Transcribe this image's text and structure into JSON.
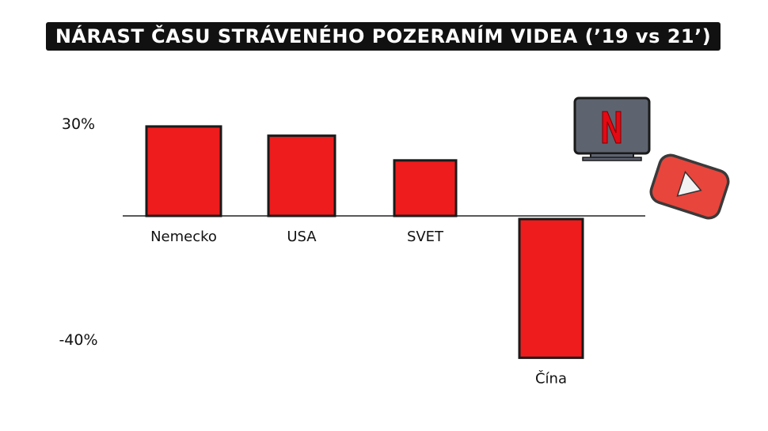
{
  "title": "NÁRAST ČASU STRÁVENÉHO POZERANÍM VIDEA (’19 vs 21’)",
  "colors": {
    "bar": "#ee1c1c",
    "bar_edge": "#1a1a1a",
    "title_bg": "#111111"
  },
  "icons": [
    "netflix-tv-icon",
    "youtube-play-icon"
  ],
  "chart_data": {
    "type": "bar",
    "title": "NÁRAST ČASU STRÁVENÉHO POZERANÍM VIDEA (’19 vs 21’)",
    "categories": [
      "Nemecko",
      "USA",
      "SVET",
      "Čína"
    ],
    "values": [
      29,
      26,
      18,
      -46
    ],
    "yticks": [
      {
        "value": 30,
        "label": "30%"
      },
      {
        "value": -40,
        "label": "-40%"
      }
    ],
    "ylim": [
      -46,
      40
    ],
    "xlabel": "",
    "ylabel": "",
    "grid": false
  }
}
